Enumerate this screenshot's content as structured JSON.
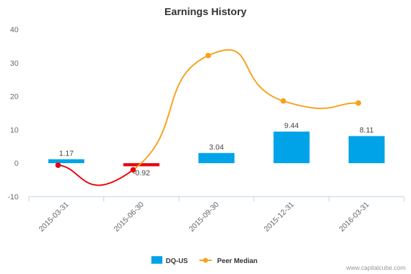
{
  "chart_data": {
    "type": "bar",
    "title": "Earnings History",
    "categories": [
      "2015-03-31",
      "2015-06-30",
      "2015-09-30",
      "2015-12-31",
      "2016-03-31"
    ],
    "series": [
      {
        "name": "DQ-US",
        "type": "bar",
        "values": [
          1.17,
          -0.92,
          3.04,
          9.44,
          8.11
        ],
        "labels": [
          "1.17",
          "-0.92",
          "3.04",
          "9.44",
          "8.11"
        ],
        "color": "#00a2e8",
        "negative_color": "#e8000b"
      },
      {
        "name": "Peer Median",
        "type": "line",
        "values": [
          -0.6,
          -2.0,
          32.2,
          18.6,
          18.0
        ],
        "color": "#f7a11a",
        "negative_color": "#e8000b"
      }
    ],
    "y_ticks": [
      -10,
      0,
      10,
      20,
      30,
      40
    ],
    "ylim": [
      -10,
      40
    ],
    "grid": false,
    "legend_position": "bottom-center",
    "xlabel": "",
    "ylabel": ""
  },
  "credit": "www.capitalcube.com"
}
